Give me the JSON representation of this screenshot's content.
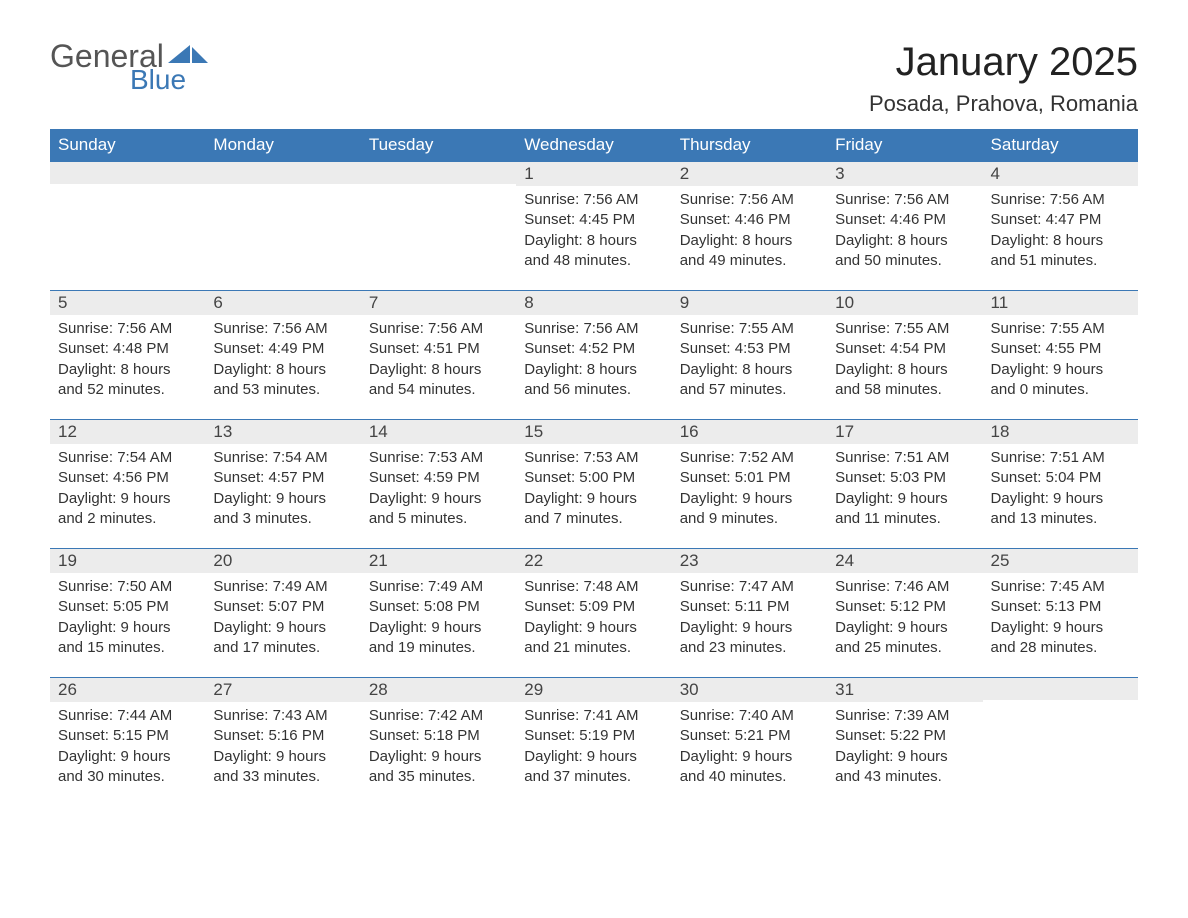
{
  "logo": {
    "text_general": "General",
    "text_blue": "Blue",
    "flag_color": "#3b78b5"
  },
  "header": {
    "month_title": "January 2025",
    "location": "Posada, Prahova, Romania"
  },
  "day_headers": [
    "Sunday",
    "Monday",
    "Tuesday",
    "Wednesday",
    "Thursday",
    "Friday",
    "Saturday"
  ],
  "colors": {
    "header_bg": "#3b78b5",
    "header_text": "#ffffff",
    "daynum_bg": "#ececec",
    "row_border": "#3b78b5",
    "body_text": "#333333",
    "page_bg": "#ffffff"
  },
  "weeks": [
    [
      {
        "day": "",
        "lines": []
      },
      {
        "day": "",
        "lines": []
      },
      {
        "day": "",
        "lines": []
      },
      {
        "day": "1",
        "lines": [
          "Sunrise: 7:56 AM",
          "Sunset: 4:45 PM",
          "Daylight: 8 hours",
          "and 48 minutes."
        ]
      },
      {
        "day": "2",
        "lines": [
          "Sunrise: 7:56 AM",
          "Sunset: 4:46 PM",
          "Daylight: 8 hours",
          "and 49 minutes."
        ]
      },
      {
        "day": "3",
        "lines": [
          "Sunrise: 7:56 AM",
          "Sunset: 4:46 PM",
          "Daylight: 8 hours",
          "and 50 minutes."
        ]
      },
      {
        "day": "4",
        "lines": [
          "Sunrise: 7:56 AM",
          "Sunset: 4:47 PM",
          "Daylight: 8 hours",
          "and 51 minutes."
        ]
      }
    ],
    [
      {
        "day": "5",
        "lines": [
          "Sunrise: 7:56 AM",
          "Sunset: 4:48 PM",
          "Daylight: 8 hours",
          "and 52 minutes."
        ]
      },
      {
        "day": "6",
        "lines": [
          "Sunrise: 7:56 AM",
          "Sunset: 4:49 PM",
          "Daylight: 8 hours",
          "and 53 minutes."
        ]
      },
      {
        "day": "7",
        "lines": [
          "Sunrise: 7:56 AM",
          "Sunset: 4:51 PM",
          "Daylight: 8 hours",
          "and 54 minutes."
        ]
      },
      {
        "day": "8",
        "lines": [
          "Sunrise: 7:56 AM",
          "Sunset: 4:52 PM",
          "Daylight: 8 hours",
          "and 56 minutes."
        ]
      },
      {
        "day": "9",
        "lines": [
          "Sunrise: 7:55 AM",
          "Sunset: 4:53 PM",
          "Daylight: 8 hours",
          "and 57 minutes."
        ]
      },
      {
        "day": "10",
        "lines": [
          "Sunrise: 7:55 AM",
          "Sunset: 4:54 PM",
          "Daylight: 8 hours",
          "and 58 minutes."
        ]
      },
      {
        "day": "11",
        "lines": [
          "Sunrise: 7:55 AM",
          "Sunset: 4:55 PM",
          "Daylight: 9 hours",
          "and 0 minutes."
        ]
      }
    ],
    [
      {
        "day": "12",
        "lines": [
          "Sunrise: 7:54 AM",
          "Sunset: 4:56 PM",
          "Daylight: 9 hours",
          "and 2 minutes."
        ]
      },
      {
        "day": "13",
        "lines": [
          "Sunrise: 7:54 AM",
          "Sunset: 4:57 PM",
          "Daylight: 9 hours",
          "and 3 minutes."
        ]
      },
      {
        "day": "14",
        "lines": [
          "Sunrise: 7:53 AM",
          "Sunset: 4:59 PM",
          "Daylight: 9 hours",
          "and 5 minutes."
        ]
      },
      {
        "day": "15",
        "lines": [
          "Sunrise: 7:53 AM",
          "Sunset: 5:00 PM",
          "Daylight: 9 hours",
          "and 7 minutes."
        ]
      },
      {
        "day": "16",
        "lines": [
          "Sunrise: 7:52 AM",
          "Sunset: 5:01 PM",
          "Daylight: 9 hours",
          "and 9 minutes."
        ]
      },
      {
        "day": "17",
        "lines": [
          "Sunrise: 7:51 AM",
          "Sunset: 5:03 PM",
          "Daylight: 9 hours",
          "and 11 minutes."
        ]
      },
      {
        "day": "18",
        "lines": [
          "Sunrise: 7:51 AM",
          "Sunset: 5:04 PM",
          "Daylight: 9 hours",
          "and 13 minutes."
        ]
      }
    ],
    [
      {
        "day": "19",
        "lines": [
          "Sunrise: 7:50 AM",
          "Sunset: 5:05 PM",
          "Daylight: 9 hours",
          "and 15 minutes."
        ]
      },
      {
        "day": "20",
        "lines": [
          "Sunrise: 7:49 AM",
          "Sunset: 5:07 PM",
          "Daylight: 9 hours",
          "and 17 minutes."
        ]
      },
      {
        "day": "21",
        "lines": [
          "Sunrise: 7:49 AM",
          "Sunset: 5:08 PM",
          "Daylight: 9 hours",
          "and 19 minutes."
        ]
      },
      {
        "day": "22",
        "lines": [
          "Sunrise: 7:48 AM",
          "Sunset: 5:09 PM",
          "Daylight: 9 hours",
          "and 21 minutes."
        ]
      },
      {
        "day": "23",
        "lines": [
          "Sunrise: 7:47 AM",
          "Sunset: 5:11 PM",
          "Daylight: 9 hours",
          "and 23 minutes."
        ]
      },
      {
        "day": "24",
        "lines": [
          "Sunrise: 7:46 AM",
          "Sunset: 5:12 PM",
          "Daylight: 9 hours",
          "and 25 minutes."
        ]
      },
      {
        "day": "25",
        "lines": [
          "Sunrise: 7:45 AM",
          "Sunset: 5:13 PM",
          "Daylight: 9 hours",
          "and 28 minutes."
        ]
      }
    ],
    [
      {
        "day": "26",
        "lines": [
          "Sunrise: 7:44 AM",
          "Sunset: 5:15 PM",
          "Daylight: 9 hours",
          "and 30 minutes."
        ]
      },
      {
        "day": "27",
        "lines": [
          "Sunrise: 7:43 AM",
          "Sunset: 5:16 PM",
          "Daylight: 9 hours",
          "and 33 minutes."
        ]
      },
      {
        "day": "28",
        "lines": [
          "Sunrise: 7:42 AM",
          "Sunset: 5:18 PM",
          "Daylight: 9 hours",
          "and 35 minutes."
        ]
      },
      {
        "day": "29",
        "lines": [
          "Sunrise: 7:41 AM",
          "Sunset: 5:19 PM",
          "Daylight: 9 hours",
          "and 37 minutes."
        ]
      },
      {
        "day": "30",
        "lines": [
          "Sunrise: 7:40 AM",
          "Sunset: 5:21 PM",
          "Daylight: 9 hours",
          "and 40 minutes."
        ]
      },
      {
        "day": "31",
        "lines": [
          "Sunrise: 7:39 AM",
          "Sunset: 5:22 PM",
          "Daylight: 9 hours",
          "and 43 minutes."
        ]
      },
      {
        "day": "",
        "lines": []
      }
    ]
  ]
}
